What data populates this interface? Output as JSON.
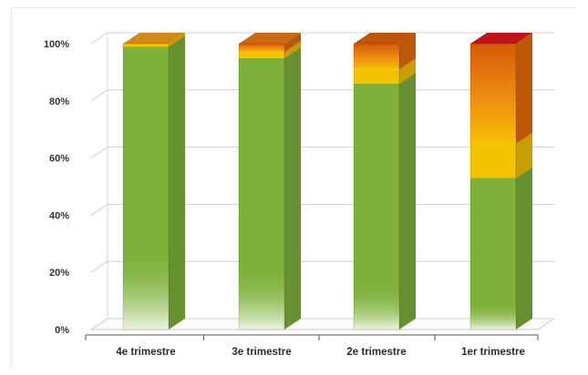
{
  "chart_data": {
    "type": "bar",
    "stacked": true,
    "percent_stacked": true,
    "three_d": true,
    "categories": [
      "4e trimestre",
      "3e trimestre",
      "2e trimestre",
      "1er trimestre"
    ],
    "series": [
      {
        "values": [
          99,
          95,
          86,
          53
        ],
        "color": "#7db13a"
      },
      {
        "values": [
          1,
          2,
          5,
          12
        ],
        "color": "#f2c300"
      },
      {
        "values": [
          0,
          3,
          9,
          35
        ],
        "color": "#e46c0a"
      }
    ],
    "top_colors": [
      "#cf8a1a",
      "#c86a12",
      "#c0540d",
      "#c0141a"
    ],
    "ylim": [
      0,
      100
    ],
    "yticks": [
      "0%",
      "20%",
      "40%",
      "60%",
      "80%",
      "100%"
    ],
    "grid": true,
    "legend": "none",
    "title": "",
    "xlabel": "",
    "ylabel": ""
  }
}
